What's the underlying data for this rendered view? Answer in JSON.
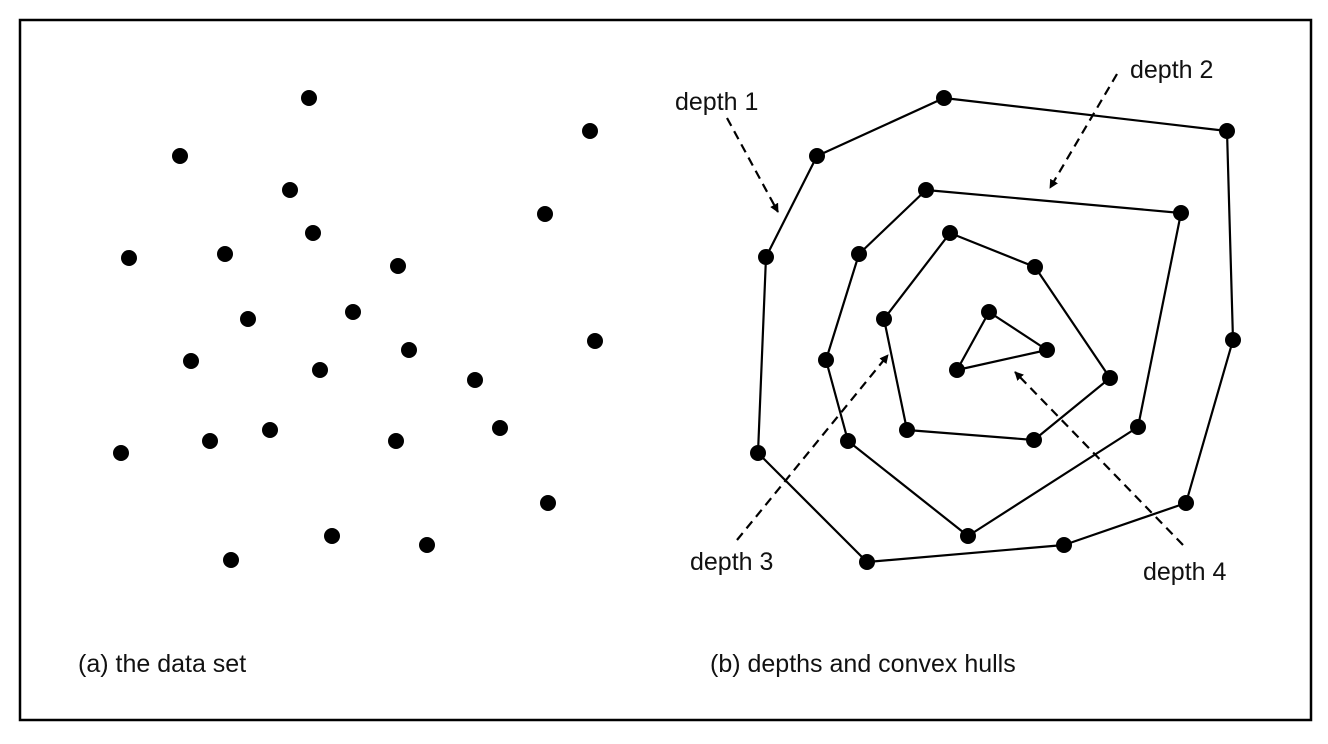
{
  "panels": {
    "a": {
      "caption": "(a) the data set"
    },
    "b": {
      "caption": "(b) depths and convex hulls",
      "labels": {
        "depth1": "depth 1",
        "depth2": "depth 2",
        "depth3": "depth 3",
        "depth4": "depth 4"
      }
    }
  },
  "colors": {
    "ink": "#000000",
    "background": "#ffffff"
  }
}
